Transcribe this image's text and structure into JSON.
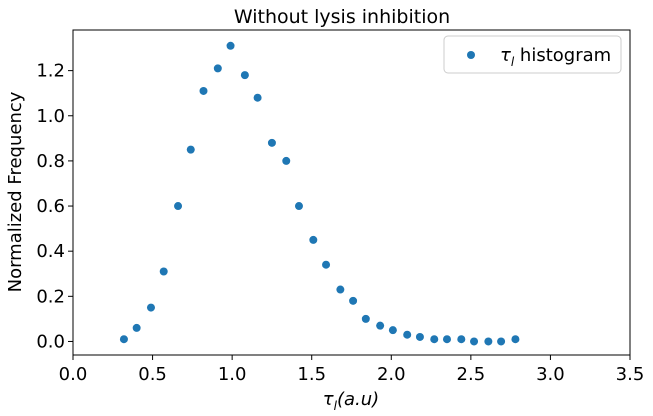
{
  "chart_data": {
    "type": "scatter",
    "title": "Without lysis inhibition",
    "xlabel": "τ_l(a.u)",
    "ylabel": "Normalized Frequency",
    "xlim": [
      0.0,
      3.5
    ],
    "ylim": [
      -0.06,
      1.38
    ],
    "xticks": [
      "0.0",
      "0.5",
      "1.0",
      "1.5",
      "2.0",
      "2.5",
      "3.0",
      "3.5"
    ],
    "yticks": [
      "0.0",
      "0.2",
      "0.4",
      "0.6",
      "0.8",
      "1.0",
      "1.2"
    ],
    "grid": false,
    "legend_position": "top-right",
    "marker_color": "#1f77b4",
    "series": [
      {
        "name": "τ_l histogram",
        "x": [
          0.32,
          0.4,
          0.49,
          0.57,
          0.66,
          0.74,
          0.82,
          0.91,
          0.99,
          1.08,
          1.16,
          1.25,
          1.34,
          1.42,
          1.51,
          1.59,
          1.68,
          1.76,
          1.84,
          1.93,
          2.01,
          2.1,
          2.18,
          2.27,
          2.35,
          2.44,
          2.52,
          2.61,
          2.69,
          2.78
        ],
        "y": [
          0.01,
          0.06,
          0.15,
          0.31,
          0.6,
          0.85,
          1.11,
          1.21,
          1.31,
          1.18,
          1.08,
          0.88,
          0.8,
          0.6,
          0.45,
          0.34,
          0.23,
          0.18,
          0.1,
          0.07,
          0.05,
          0.03,
          0.02,
          0.01,
          0.01,
          0.01,
          0.0,
          0.0,
          0.0,
          0.01
        ]
      }
    ]
  }
}
